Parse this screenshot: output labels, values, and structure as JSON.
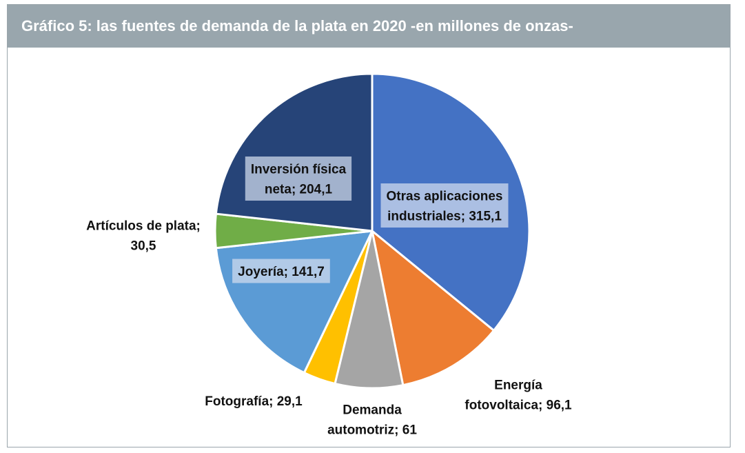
{
  "chart_data": {
    "type": "pie",
    "title": "Gráfico 5: las fuentes de demanda de la plata en 2020 -en millones de onzas-",
    "slices": [
      {
        "label_lines": [
          "Otras aplicaciones",
          "industriales; 315,1"
        ],
        "value": 315.1,
        "color": "#4472c4"
      },
      {
        "label_lines": [
          "Energía",
          "fotovoltaica; 96,1"
        ],
        "value": 96.1,
        "color": "#ed7d31"
      },
      {
        "label_lines": [
          "Demanda",
          "automotriz; 61"
        ],
        "value": 61,
        "color": "#a5a5a5"
      },
      {
        "label_lines": [
          "Fotografía; 29,1"
        ],
        "value": 29.1,
        "color": "#ffc000"
      },
      {
        "label_lines": [
          "Joyería; 141,7"
        ],
        "value": 141.7,
        "color": "#5b9bd5"
      },
      {
        "label_lines": [
          "Artículos de plata;",
          "30,5"
        ],
        "value": 30.5,
        "color": "#70ad47"
      },
      {
        "label_lines": [
          "Inversión física",
          "neta; 204,1"
        ],
        "value": 204.1,
        "color": "#264478"
      }
    ]
  }
}
